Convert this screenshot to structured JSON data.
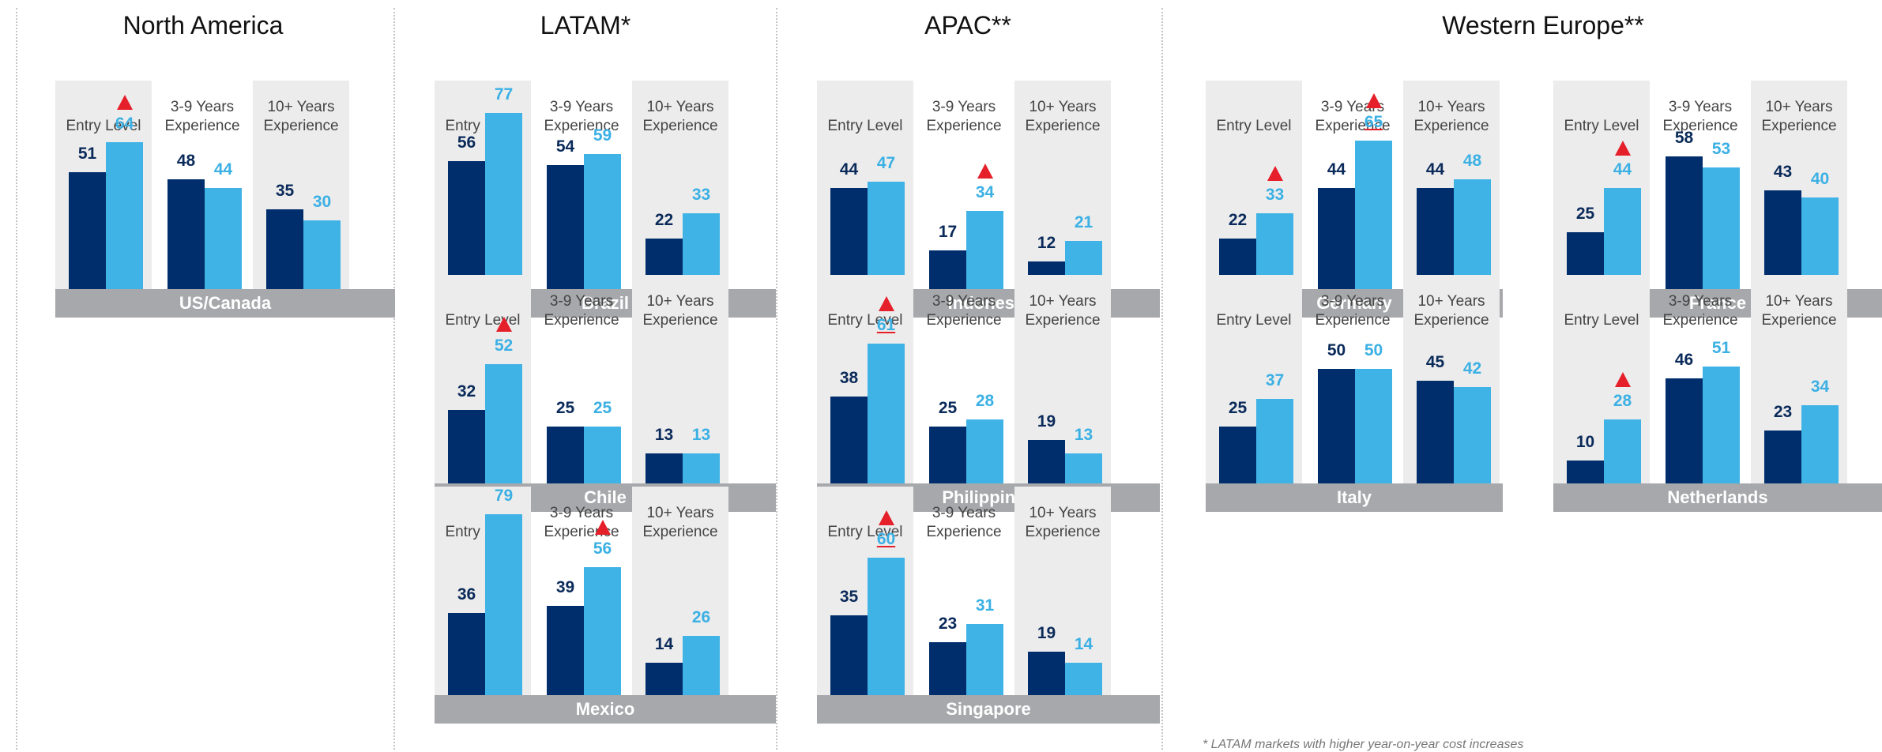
{
  "column_labels": [
    "Entry Level",
    "3-9 Years\nExperience",
    "10+ Years\nExperience"
  ],
  "footnote": "* LATAM markets with higher year-on-year cost increases",
  "colors": {
    "previous": "#002d6b",
    "current": "#40b3e6",
    "increase_marker": "#e5202a",
    "shade": "#ececec",
    "country_band": "#a7a8ab"
  },
  "regions": [
    {
      "name": "North America"
    },
    {
      "name": "LATAM*"
    },
    {
      "name": "APAC**"
    },
    {
      "name": "Western Europe**"
    }
  ],
  "chart_data": {
    "type": "bar",
    "categories": [
      "Entry Level",
      "3-9 Years Experience",
      "10+ Years Experience"
    ],
    "ylim": [
      0,
      100
    ],
    "panels": [
      {
        "region": "North America",
        "country": "US/Canada",
        "dark": [
          51,
          48,
          35
        ],
        "light": [
          64,
          44,
          30
        ],
        "flag": [
          true,
          false,
          false
        ],
        "underline": [
          false,
          false,
          false
        ]
      },
      {
        "region": "LATAM*",
        "country": "Brazil",
        "dark": [
          56,
          54,
          22
        ],
        "light": [
          77,
          59,
          33
        ],
        "flag": [
          true,
          false,
          false
        ],
        "underline": [
          false,
          false,
          false
        ]
      },
      {
        "region": "LATAM*",
        "country": "Chile",
        "dark": [
          32,
          25,
          13
        ],
        "light": [
          52,
          25,
          13
        ],
        "flag": [
          true,
          false,
          false
        ],
        "underline": [
          false,
          false,
          false
        ]
      },
      {
        "region": "LATAM*",
        "country": "Mexico",
        "dark": [
          36,
          39,
          14
        ],
        "light": [
          79,
          56,
          26
        ],
        "flag": [
          true,
          true,
          false
        ],
        "underline": [
          false,
          false,
          false
        ]
      },
      {
        "region": "APAC**",
        "country": "Indonesia",
        "dark": [
          44,
          17,
          12
        ],
        "light": [
          47,
          34,
          21
        ],
        "flag": [
          false,
          true,
          false
        ],
        "underline": [
          false,
          false,
          false
        ]
      },
      {
        "region": "APAC**",
        "country": "Philippines",
        "dark": [
          38,
          25,
          19
        ],
        "light": [
          61,
          28,
          13
        ],
        "flag": [
          true,
          false,
          false
        ],
        "underline": [
          true,
          false,
          false
        ]
      },
      {
        "region": "APAC**",
        "country": "Singapore",
        "dark": [
          35,
          23,
          19
        ],
        "light": [
          60,
          31,
          14
        ],
        "flag": [
          true,
          false,
          false
        ],
        "underline": [
          true,
          false,
          false
        ]
      },
      {
        "region": "Western Europe**",
        "country": "Germany",
        "dark": [
          22,
          44,
          44
        ],
        "light": [
          33,
          65,
          48
        ],
        "flag": [
          true,
          true,
          false
        ],
        "underline": [
          false,
          true,
          false
        ]
      },
      {
        "region": "Western Europe**",
        "country": "France",
        "dark": [
          25,
          58,
          43
        ],
        "light": [
          44,
          53,
          40
        ],
        "flag": [
          true,
          false,
          false
        ],
        "underline": [
          false,
          false,
          false
        ]
      },
      {
        "region": "Western Europe**",
        "country": "Italy",
        "dark": [
          25,
          50,
          45
        ],
        "light": [
          37,
          50,
          42
        ],
        "flag": [
          false,
          false,
          false
        ],
        "underline": [
          false,
          false,
          false
        ]
      },
      {
        "region": "Western Europe**",
        "country": "Netherlands",
        "dark": [
          10,
          46,
          23
        ],
        "light": [
          28,
          51,
          34
        ],
        "flag": [
          true,
          false,
          false
        ],
        "underline": [
          false,
          false,
          false
        ]
      }
    ]
  }
}
